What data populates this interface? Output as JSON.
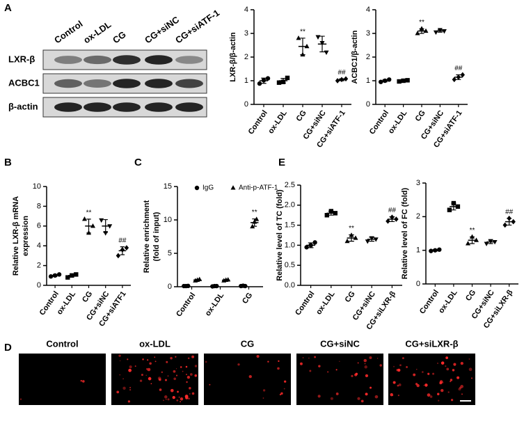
{
  "panel_labels": [
    "A",
    "B",
    "C",
    "D",
    "E"
  ],
  "blot": {
    "lanes": [
      "Control",
      "ox-LDL",
      "CG",
      "CG+siNC",
      "CG+siATF-1"
    ],
    "rows": [
      "LXR-β",
      "ACBC1",
      "β-actin"
    ]
  },
  "micrographs": {
    "labels": [
      "Control",
      "ox-LDL",
      "CG",
      "CG+siNC",
      "CG+siLXR-β"
    ]
  },
  "chart_data": [
    {
      "type": "dotplot",
      "ylabel": "LXR-β/β-actin",
      "categories": [
        "Control",
        "ox-LDL",
        "CG",
        "CG+siNC",
        "CG+siATF-1"
      ],
      "ylim": [
        0,
        4
      ],
      "yticks": [
        0,
        1,
        2,
        3,
        4
      ],
      "series": [
        {
          "markers": [
            "circle",
            "square",
            "triangle",
            "triangle-down",
            "diamond"
          ],
          "points": [
            [
              0.88,
              1.02,
              1.1
            ],
            [
              0.92,
              0.95,
              1.12
            ],
            [
              2.8,
              2.1,
              2.45
            ],
            [
              2.85,
              2.6,
              2.2
            ],
            [
              1.0,
              1.05,
              1.08
            ]
          ],
          "mean": [
            1.0,
            1.0,
            2.45,
            2.55,
            1.04
          ],
          "sd": [
            0.11,
            0.1,
            0.35,
            0.33,
            0.04
          ],
          "annotations": [
            null,
            null,
            "**",
            null,
            "##"
          ]
        }
      ]
    },
    {
      "type": "dotplot",
      "ylabel": "ACBC1/β-actin",
      "categories": [
        "Control",
        "ox-LDL",
        "CG",
        "CG+siNC",
        "CG+siATF-1"
      ],
      "ylim": [
        0,
        4
      ],
      "yticks": [
        0,
        1,
        2,
        3,
        4
      ],
      "series": [
        {
          "markers": [
            "circle",
            "square",
            "triangle",
            "triangle-down",
            "diamond"
          ],
          "points": [
            [
              0.95,
              1.0,
              1.05
            ],
            [
              0.97,
              1.0,
              1.02
            ],
            [
              3.0,
              3.2,
              3.1
            ],
            [
              3.05,
              3.15,
              3.1
            ],
            [
              1.05,
              1.15,
              1.25
            ]
          ],
          "mean": [
            1.0,
            1.0,
            3.1,
            3.1,
            1.15
          ],
          "sd": [
            0.05,
            0.03,
            0.1,
            0.05,
            0.1
          ],
          "annotations": [
            null,
            null,
            "**",
            null,
            "##"
          ]
        }
      ]
    },
    {
      "type": "dotplot",
      "ylabel": [
        "Relative LXR-β mRNA",
        "expression"
      ],
      "categories": [
        "Control",
        "ox-LDL",
        "CG",
        "CG+siNC",
        "CG+siATF1"
      ],
      "ylim": [
        0,
        10
      ],
      "yticks": [
        0,
        2,
        4,
        6,
        8,
        10
      ],
      "series": [
        {
          "markers": [
            "circle",
            "square",
            "triangle",
            "triangle-down",
            "diamond"
          ],
          "points": [
            [
              0.9,
              1.0,
              1.1
            ],
            [
              0.8,
              1.0,
              1.1
            ],
            [
              6.7,
              5.3,
              6.0
            ],
            [
              6.6,
              5.3,
              6.0
            ],
            [
              3.0,
              3.6,
              3.8
            ]
          ],
          "mean": [
            1.0,
            1.0,
            6.0,
            6.0,
            3.5
          ],
          "sd": [
            0.1,
            0.15,
            0.7,
            0.65,
            0.4
          ],
          "annotations": [
            null,
            null,
            "**",
            null,
            "##"
          ]
        }
      ]
    },
    {
      "type": "dotplot",
      "ylabel": [
        "Relative enrichment",
        "(fold of input)"
      ],
      "categories": [
        "Control",
        "ox-LDL",
        "CG"
      ],
      "ylim": [
        0,
        15
      ],
      "yticks": [
        0,
        5,
        10,
        15
      ],
      "legend": true,
      "series": [
        {
          "name": "IgG",
          "markers": [
            "circle",
            "circle",
            "circle"
          ],
          "points": [
            [
              0.1,
              0.1,
              0.12
            ],
            [
              0.05,
              0.1,
              0.1
            ],
            [
              0.1,
              0.15,
              0.1
            ]
          ],
          "mean": [
            0.1,
            0.08,
            0.12
          ],
          "sd": [
            0.02,
            0.03,
            0.03
          ],
          "annotations": [
            null,
            null,
            null
          ]
        },
        {
          "name": "Anti-p-ATF-1",
          "markers": [
            "triangle",
            "triangle",
            "triangle"
          ],
          "points": [
            [
              0.9,
              1.0,
              1.1
            ],
            [
              0.9,
              1.0,
              1.05
            ],
            [
              9.0,
              9.7,
              10.1
            ]
          ],
          "mean": [
            1.0,
            0.98,
            9.6
          ],
          "sd": [
            0.1,
            0.08,
            0.55
          ],
          "annotations": [
            null,
            null,
            "**"
          ]
        }
      ]
    },
    {
      "type": "dotplot",
      "ylabel": "Relative level of TC (fold)",
      "categories": [
        "Control",
        "ox-LDL",
        "CG",
        "CG+siNC",
        "CG+siLXR-β"
      ],
      "ylim": [
        0,
        2.5
      ],
      "yticks": [
        {
          "value": 0,
          "label": "0.0"
        },
        0.5,
        {
          "value": 1,
          "label": "1.0"
        },
        1.5,
        {
          "value": 2,
          "label": "2.0"
        },
        2.5
      ],
      "series": [
        {
          "markers": [
            "circle",
            "square",
            "triangle",
            "triangle-down",
            "diamond"
          ],
          "points": [
            [
              0.95,
              1.0,
              1.07
            ],
            [
              1.75,
              1.85,
              1.8
            ],
            [
              1.1,
              1.25,
              1.18
            ],
            [
              1.1,
              1.18,
              1.15
            ],
            [
              1.6,
              1.7,
              1.65
            ]
          ],
          "mean": [
            1.0,
            1.8,
            1.18,
            1.15,
            1.65
          ],
          "sd": [
            0.06,
            0.05,
            0.08,
            0.05,
            0.06
          ],
          "annotations": [
            null,
            null,
            "**",
            null,
            "##"
          ]
        }
      ]
    },
    {
      "type": "dotplot",
      "ylabel": "Relative level of FC (fold)",
      "categories": [
        "Control",
        "ox-LDL",
        "CG",
        "CG+siNC",
        "CG+siLXR-β"
      ],
      "ylim": [
        0,
        3
      ],
      "yticks": [
        0,
        1,
        2,
        3
      ],
      "series": [
        {
          "markers": [
            "circle",
            "square",
            "triangle",
            "triangle-down",
            "diamond"
          ],
          "points": [
            [
              0.98,
              1.0,
              1.02
            ],
            [
              2.2,
              2.4,
              2.3
            ],
            [
              1.2,
              1.4,
              1.3
            ],
            [
              1.2,
              1.28,
              1.25
            ],
            [
              1.75,
              1.95,
              1.85
            ]
          ],
          "mean": [
            1.0,
            2.3,
            1.3,
            1.25,
            1.85
          ],
          "sd": [
            0.02,
            0.1,
            0.1,
            0.05,
            0.1
          ],
          "annotations": [
            null,
            null,
            "**",
            null,
            "##"
          ]
        }
      ]
    }
  ]
}
